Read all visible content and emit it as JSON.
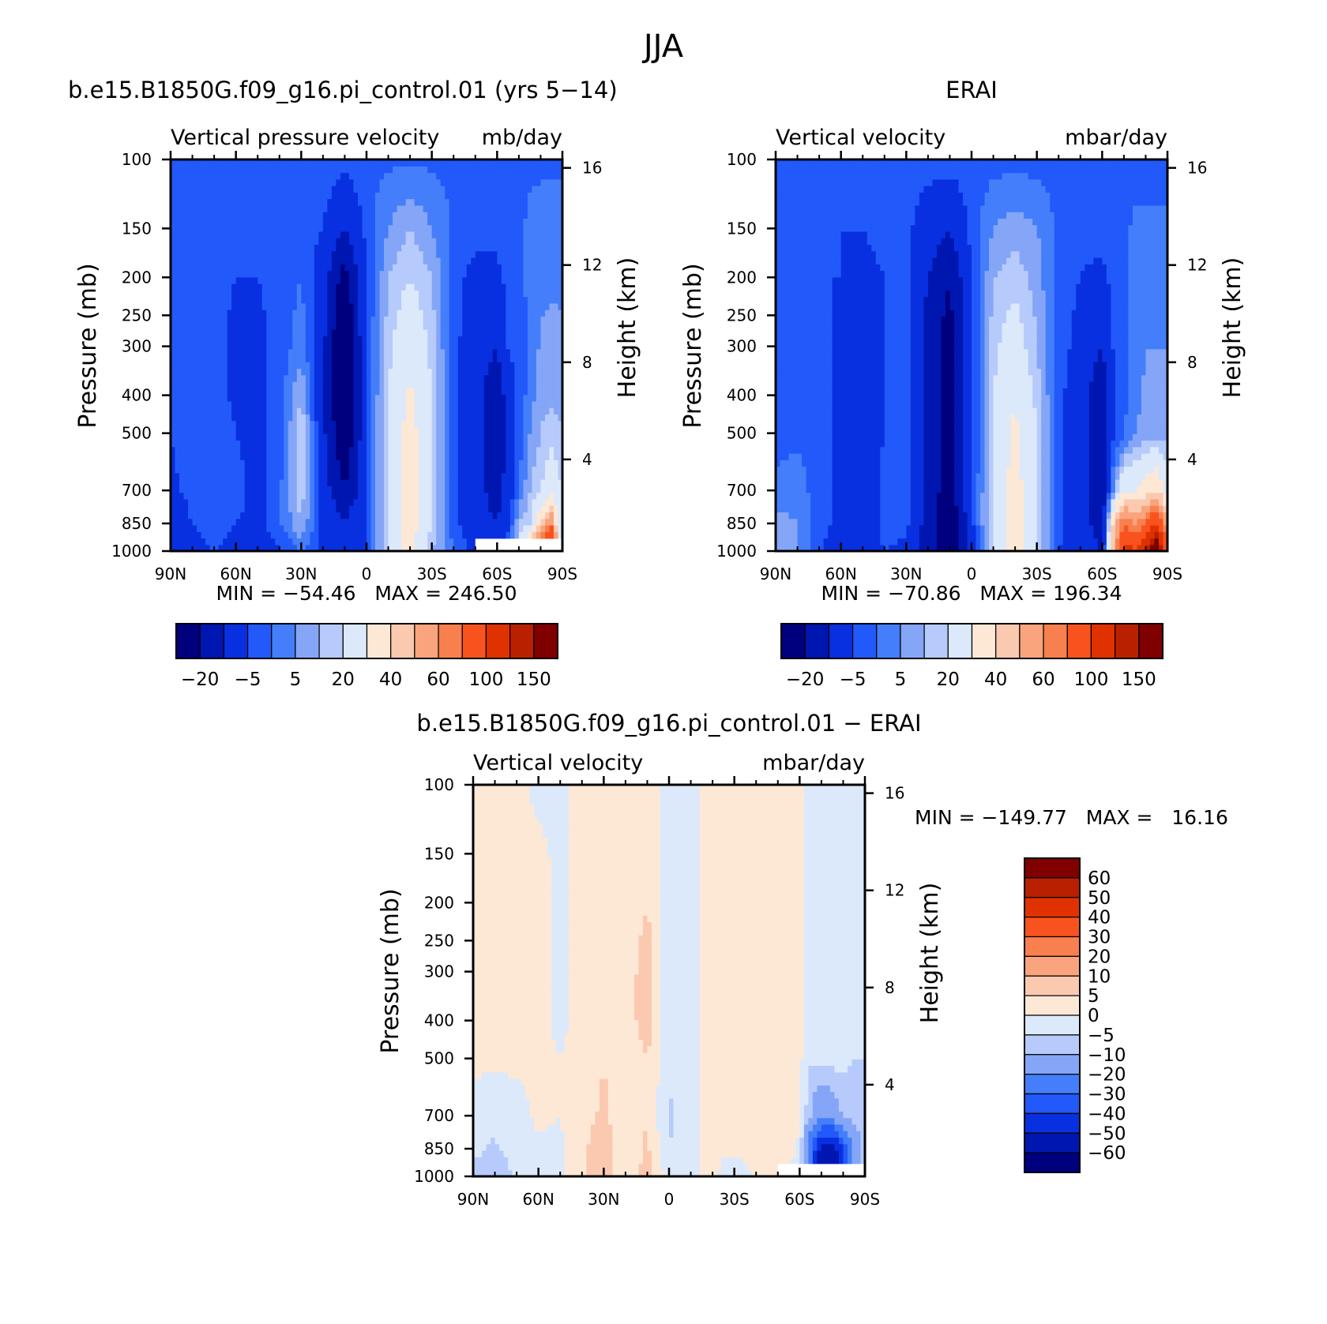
{
  "figure": {
    "title": "JJA"
  },
  "chart_data": [
    {
      "id": "model",
      "type": "heatmap",
      "title": "b.e15.B1850G.f09_g16.pi_control.01 (yrs 5−14)",
      "subtitle_left": "Vertical pressure velocity",
      "subtitle_right": "mb/day",
      "xlabel": "",
      "ylabel": "Pressure (mb)",
      "ylabel_right": "Height (km)",
      "x_ticks": [
        "90N",
        "60N",
        "30N",
        "0",
        "30S",
        "60S",
        "90S"
      ],
      "y_ticks": [
        "100",
        "150",
        "200",
        "250",
        "300",
        "400",
        "500",
        "700",
        "850",
        "1000"
      ],
      "y_ticks_right": [
        "16",
        "12",
        "8",
        "4"
      ],
      "x_range": [
        90,
        -90
      ],
      "y_range_mb": [
        1000,
        100
      ],
      "y_scale": "log",
      "stats": "MIN = −54.46   MAX = 246.50",
      "min": -54.46,
      "max": 246.5,
      "colorbar": {
        "orientation": "horizontal",
        "levels": [
          -30,
          -20,
          -10,
          -5,
          0,
          5,
          10,
          20,
          30,
          40,
          50,
          60,
          80,
          100,
          120,
          150
        ],
        "tick_labels": [
          "−20",
          "−5",
          "5",
          "20",
          "40",
          "60",
          "100",
          "150"
        ],
        "colors": [
          "#00007f",
          "#0016b0",
          "#0830e0",
          "#2259fa",
          "#447efa",
          "#85a5f7",
          "#b6cbfb",
          "#dce9fb",
          "#fde8d6",
          "#fbc9b0",
          "#f9a47c",
          "#f7804e",
          "#f8531f",
          "#e03200",
          "#b82000",
          "#800000"
        ]
      },
      "field": {
        "lat_nodes": [
          90,
          80,
          70,
          60,
          50,
          40,
          30,
          20,
          10,
          0,
          -10,
          -20,
          -30,
          -40,
          -50,
          -60,
          -65,
          -70,
          -75,
          -80,
          -85,
          -90
        ],
        "plev_nodes": [
          1000,
          850,
          700,
          500,
          400,
          300,
          200,
          150,
          100
        ],
        "values": [
          [
            -20,
            -12,
            -10,
            -12,
            -15,
            -10,
            -5,
            -12,
            -15,
            -10,
            10,
            25,
            5,
            -5,
            -12,
            -15,
            -5,
            10,
            40,
            80,
            120,
            0
          ],
          [
            -15,
            -10,
            -8,
            -10,
            -12,
            -6,
            5,
            -12,
            -18,
            -12,
            12,
            25,
            10,
            -8,
            -15,
            -20,
            -12,
            5,
            10,
            30,
            50,
            0
          ],
          [
            -12,
            -8,
            -6,
            -8,
            -12,
            -6,
            8,
            -15,
            -30,
            -12,
            12,
            25,
            10,
            -8,
            -15,
            -25,
            -15,
            -5,
            5,
            10,
            15,
            10
          ],
          [
            -10,
            -5,
            -5,
            -10,
            -12,
            -8,
            10,
            -18,
            -40,
            -12,
            12,
            25,
            10,
            -8,
            -15,
            -30,
            -18,
            -8,
            0,
            5,
            8,
            5
          ],
          [
            -10,
            -5,
            -6,
            -12,
            -12,
            -8,
            5,
            -18,
            -45,
            -10,
            10,
            22,
            10,
            -8,
            -15,
            -28,
            -15,
            -8,
            -3,
            3,
            4,
            3
          ],
          [
            -10,
            -6,
            -8,
            -12,
            -12,
            -8,
            -2,
            -18,
            -45,
            -10,
            8,
            18,
            8,
            -8,
            -15,
            -20,
            -10,
            -8,
            -4,
            1,
            2,
            1
          ],
          [
            -8,
            -6,
            -8,
            -10,
            -10,
            -8,
            -5,
            -15,
            -35,
            -10,
            5,
            10,
            5,
            -8,
            -12,
            -12,
            -8,
            -6,
            -4,
            -2,
            -1,
            -1
          ],
          [
            -6,
            -6,
            -6,
            -8,
            -8,
            -6,
            -6,
            -10,
            -20,
            -8,
            0,
            5,
            0,
            -6,
            -8,
            -8,
            -6,
            -6,
            -4,
            -3,
            -2,
            -2
          ],
          [
            -6,
            -6,
            -6,
            -6,
            -6,
            -6,
            -6,
            -6,
            -8,
            -6,
            -6,
            -6,
            -6,
            -6,
            -6,
            -6,
            -6,
            -6,
            -6,
            -6,
            -6,
            -6
          ]
        ],
        "masked_region": {
          "lat_from": -50,
          "lat_to": -90,
          "p_from": 930,
          "p_to": 1000
        }
      }
    },
    {
      "id": "obs",
      "type": "heatmap",
      "title": "ERAI",
      "subtitle_left": "Vertical velocity",
      "subtitle_right": "mbar/day",
      "xlabel": "",
      "ylabel": "Pressure (mb)",
      "ylabel_right": "Height (km)",
      "x_ticks": [
        "90N",
        "60N",
        "30N",
        "0",
        "30S",
        "60S",
        "90S"
      ],
      "y_ticks": [
        "100",
        "150",
        "200",
        "250",
        "300",
        "400",
        "500",
        "700",
        "850",
        "1000"
      ],
      "y_ticks_right": [
        "16",
        "12",
        "8",
        "4"
      ],
      "x_range": [
        90,
        -90
      ],
      "y_range_mb": [
        1000,
        100
      ],
      "y_scale": "log",
      "stats": "MIN = −70.86   MAX = 196.34",
      "min": -70.86,
      "max": 196.34,
      "colorbar": {
        "orientation": "horizontal",
        "levels": [
          -30,
          -20,
          -10,
          -5,
          0,
          5,
          10,
          20,
          30,
          40,
          50,
          60,
          80,
          100,
          120,
          150
        ],
        "tick_labels": [
          "−20",
          "−5",
          "5",
          "20",
          "40",
          "60",
          "100",
          "150"
        ],
        "colors": [
          "#00007f",
          "#0016b0",
          "#0830e0",
          "#2259fa",
          "#447efa",
          "#85a5f7",
          "#b6cbfb",
          "#dce9fb",
          "#fde8d6",
          "#fbc9b0",
          "#f9a47c",
          "#f7804e",
          "#f8531f",
          "#e03200",
          "#b82000",
          "#800000"
        ]
      },
      "field": {
        "lat_nodes": [
          90,
          80,
          70,
          60,
          50,
          40,
          30,
          20,
          10,
          0,
          -10,
          -20,
          -30,
          -40,
          -50,
          -60,
          -65,
          -70,
          -75,
          -80,
          -85,
          -90
        ],
        "plev_nodes": [
          1000,
          850,
          700,
          500,
          400,
          300,
          200,
          150,
          100
        ],
        "values": [
          [
            3,
            1,
            -10,
            -12,
            -15,
            -10,
            -12,
            -25,
            -40,
            -15,
            10,
            25,
            10,
            -10,
            -15,
            -20,
            40,
            90,
            80,
            100,
            150,
            60
          ],
          [
            2,
            0,
            -8,
            -12,
            -15,
            -8,
            -8,
            -25,
            -40,
            -12,
            12,
            25,
            10,
            -8,
            -15,
            -25,
            30,
            60,
            50,
            60,
            80,
            40
          ],
          [
            -3,
            -2,
            -8,
            -12,
            -15,
            -8,
            -5,
            -25,
            -35,
            -12,
            12,
            25,
            10,
            -8,
            -15,
            -30,
            0,
            20,
            20,
            25,
            30,
            15
          ],
          [
            -8,
            -6,
            -8,
            -12,
            -15,
            -10,
            -5,
            -25,
            -35,
            -12,
            10,
            22,
            10,
            -8,
            -15,
            -30,
            -12,
            -6,
            0,
            2,
            3,
            3
          ],
          [
            -10,
            -8,
            -8,
            -12,
            -15,
            -10,
            -5,
            -25,
            -35,
            -12,
            10,
            20,
            8,
            -8,
            -15,
            -28,
            -12,
            -6,
            -2,
            1,
            1,
            1
          ],
          [
            -10,
            -8,
            -8,
            -12,
            -15,
            -10,
            -8,
            -25,
            -35,
            -12,
            8,
            15,
            5,
            -8,
            -12,
            -20,
            -10,
            -8,
            -3,
            0,
            0,
            0
          ],
          [
            -8,
            -8,
            -10,
            -10,
            -12,
            -10,
            -8,
            -20,
            -30,
            -10,
            5,
            8,
            3,
            -8,
            -10,
            -12,
            -8,
            -6,
            -4,
            -2,
            -2,
            -2
          ],
          [
            -8,
            -8,
            -10,
            -10,
            -10,
            -8,
            -8,
            -15,
            -20,
            -8,
            0,
            3,
            0,
            -6,
            -8,
            -8,
            -6,
            -6,
            -4,
            -4,
            -4,
            -4
          ],
          [
            -7,
            -7,
            -7,
            -7,
            -7,
            -7,
            -7,
            -7,
            -7,
            -7,
            -7,
            -7,
            -7,
            -7,
            -7,
            -7,
            -7,
            -7,
            -7,
            -7,
            -7,
            -7
          ]
        ]
      }
    },
    {
      "id": "diff",
      "type": "heatmap",
      "title": "b.e15.B1850G.f09_g16.pi_control.01 − ERAI",
      "subtitle_left": "Vertical velocity",
      "subtitle_right": "mbar/day",
      "xlabel": "",
      "ylabel": "Pressure (mb)",
      "ylabel_right": "Height (km)",
      "x_ticks": [
        "90N",
        "60N",
        "30N",
        "0",
        "30S",
        "60S",
        "90S"
      ],
      "y_ticks": [
        "100",
        "150",
        "200",
        "250",
        "300",
        "400",
        "500",
        "700",
        "850",
        "1000"
      ],
      "y_ticks_right": [
        "16",
        "12",
        "8",
        "4"
      ],
      "x_range": [
        90,
        -90
      ],
      "y_range_mb": [
        1000,
        100
      ],
      "y_scale": "log",
      "stats": "MIN = −149.77   MAX =   16.16",
      "min": -149.77,
      "max": 16.16,
      "colorbar": {
        "orientation": "vertical",
        "levels": [
          -60,
          -50,
          -40,
          -30,
          -20,
          -10,
          -5,
          0,
          5,
          10,
          20,
          30,
          40,
          50,
          60
        ],
        "tick_labels": [
          "60",
          "50",
          "40",
          "30",
          "20",
          "10",
          "5",
          "0",
          "−5",
          "−10",
          "−20",
          "−30",
          "−40",
          "−50",
          "−60"
        ],
        "colors": [
          "#00007f",
          "#0016b0",
          "#0830e0",
          "#2259fa",
          "#447efa",
          "#85a5f7",
          "#b6cbfb",
          "#dce9fb",
          "#fde8d6",
          "#fbc9b0",
          "#f9a47c",
          "#f7804e",
          "#f8531f",
          "#e03200",
          "#b82000",
          "#800000"
        ]
      },
      "field": {
        "lat_nodes": [
          90,
          80,
          70,
          60,
          50,
          40,
          30,
          20,
          10,
          0,
          -10,
          -20,
          -30,
          -40,
          -50,
          -60,
          -65,
          -70,
          -75,
          -80,
          -85,
          -90
        ],
        "plev_nodes": [
          1000,
          850,
          700,
          500,
          400,
          300,
          200,
          150,
          100
        ],
        "values": [
          [
            -6,
            -8,
            -4,
            -2,
            -1,
            3,
            10,
            -1,
            8,
            -3,
            -1,
            1,
            -4,
            1,
            3,
            -2,
            -30,
            -60,
            -60,
            -40,
            -20,
            -5
          ],
          [
            -4,
            -6,
            -3,
            -1,
            -1,
            4,
            8,
            1,
            6,
            -5,
            -1,
            1,
            1,
            2,
            3,
            -1,
            -30,
            -55,
            -60,
            -40,
            -20,
            -5
          ],
          [
            -2,
            -3,
            -2,
            1,
            0,
            3,
            6,
            2,
            5,
            -6,
            -1,
            1,
            1,
            2,
            2,
            1,
            -10,
            -20,
            -15,
            -10,
            -8,
            -5
          ],
          [
            1,
            1,
            1,
            1,
            0,
            2,
            5,
            2,
            5,
            -4,
            -1,
            1,
            1,
            2,
            2,
            1,
            -4,
            -3,
            -3,
            -3,
            -5,
            -5
          ],
          [
            1,
            1,
            1,
            1,
            -1,
            1,
            4,
            2,
            8,
            -5,
            -1,
            1,
            1,
            2,
            1,
            1,
            -3,
            -1,
            -1,
            -2,
            -3,
            -3
          ],
          [
            1,
            1,
            1,
            1,
            -1,
            1,
            3,
            2,
            8,
            -5,
            -1,
            1,
            1,
            2,
            1,
            1,
            -1,
            -1,
            -1,
            -2,
            -2,
            -2
          ],
          [
            1,
            1,
            1,
            1,
            -1,
            1,
            2,
            1,
            5,
            -3,
            -1,
            1,
            1,
            1,
            1,
            1,
            -1,
            -1,
            -1,
            -1,
            -2,
            -2
          ],
          [
            1,
            1,
            1,
            1,
            -1,
            1,
            2,
            1,
            2,
            -2,
            -1,
            1,
            1,
            1,
            1,
            1,
            -1,
            -1,
            -1,
            -1,
            -1,
            -1
          ],
          [
            1,
            1,
            1,
            -1,
            -1,
            1,
            1,
            1,
            1,
            -1,
            -1,
            1,
            1,
            1,
            1,
            1,
            -1,
            -1,
            -1,
            -1,
            -1,
            -1
          ]
        ],
        "masked_region": {
          "lat_from": -50,
          "lat_to": -90,
          "p_from": 930,
          "p_to": 1000
        }
      }
    }
  ]
}
